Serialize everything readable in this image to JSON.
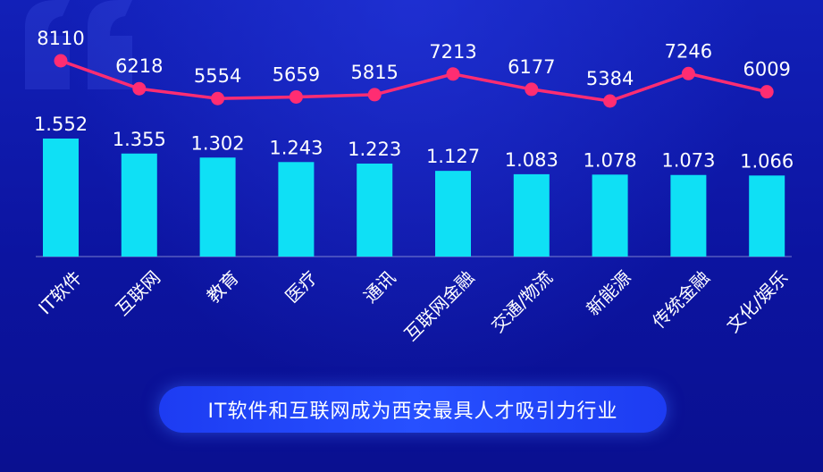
{
  "chart_data": {
    "type": "bar",
    "categories": [
      "IT软件",
      "互联网",
      "教育",
      "医疗",
      "通讯",
      "互联网金融",
      "交通/物流",
      "新能源",
      "传统金融",
      "文化/娱乐"
    ],
    "series": [
      {
        "kind": "bar",
        "values": [
          1.552,
          1.355,
          1.302,
          1.243,
          1.223,
          1.127,
          1.083,
          1.078,
          1.073,
          1.066
        ],
        "labels": [
          "1.552",
          "1.355",
          "1.302",
          "1.243",
          "1.223",
          "1.127",
          "1.083",
          "1.078",
          "1.073",
          "1.066"
        ],
        "color": "#0fe0f5"
      },
      {
        "kind": "line",
        "values": [
          8110,
          6218,
          5554,
          5659,
          5815,
          7213,
          6177,
          5384,
          7246,
          6009
        ],
        "labels": [
          "8110",
          "6218",
          "5554",
          "5659",
          "5815",
          "7213",
          "6177",
          "5384",
          "7246",
          "6009"
        ],
        "color": "#ff2d72"
      }
    ],
    "bar_ylim": [
      0,
      1.6
    ],
    "line_ylim": [
      5000,
      9000
    ],
    "grid": false,
    "title": "",
    "xlabel": "",
    "ylabel": ""
  },
  "caption": "IT软件和互联网成为西安最具人才吸引力行业",
  "colors": {
    "background": "#0d14a6",
    "bar": "#0fe0f5",
    "line": "#ff2d72",
    "text": "#ffffff",
    "pill": "#2346f5"
  }
}
